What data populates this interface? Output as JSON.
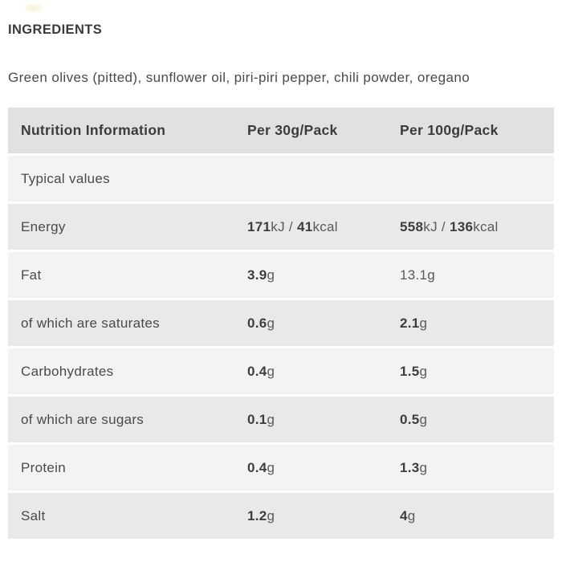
{
  "colors": {
    "header_bg": "#e1e1e1",
    "row_light_bg": "#f3f3f3",
    "row_dark_bg": "#e9e9e9",
    "heading_text": "#3b3b3b",
    "body_text": "#4a4a4a",
    "bold_text": "#3d3d3d",
    "unit_text": "#5a5a5a"
  },
  "ingredients": {
    "heading": "INGREDIENTS",
    "text": "Green olives (pitted), sunflower oil, piri-piri pepper, chili powder, oregano"
  },
  "nutrition_table": {
    "columns": [
      "Nutrition Information",
      "Per 30g/Pack",
      "Per 100g/Pack"
    ],
    "rows": [
      {
        "label": "Typical values",
        "per_30g": [],
        "per_100g": []
      },
      {
        "label": "Energy",
        "per_30g": [
          {
            "t": "171",
            "b": true
          },
          {
            "t": "kJ / ",
            "b": false
          },
          {
            "t": "41",
            "b": true
          },
          {
            "t": "kcal",
            "b": false
          }
        ],
        "per_100g": [
          {
            "t": "558",
            "b": true
          },
          {
            "t": "kJ / ",
            "b": false
          },
          {
            "t": "136",
            "b": true
          },
          {
            "t": "kcal",
            "b": false
          }
        ]
      },
      {
        "label": "Fat",
        "per_30g": [
          {
            "t": "3.9",
            "b": true
          },
          {
            "t": "g",
            "b": false
          }
        ],
        "per_100g": [
          {
            "t": "13.1g",
            "b": false
          }
        ]
      },
      {
        "label": "of which are saturates",
        "per_30g": [
          {
            "t": "0.6",
            "b": true
          },
          {
            "t": "g",
            "b": false
          }
        ],
        "per_100g": [
          {
            "t": "2.1",
            "b": true
          },
          {
            "t": "g",
            "b": false
          }
        ]
      },
      {
        "label": "Carbohydrates",
        "per_30g": [
          {
            "t": "0.4",
            "b": true
          },
          {
            "t": "g",
            "b": false
          }
        ],
        "per_100g": [
          {
            "t": "1.5",
            "b": true
          },
          {
            "t": "g",
            "b": false
          }
        ]
      },
      {
        "label": "of which are sugars",
        "per_30g": [
          {
            "t": "0.1",
            "b": true
          },
          {
            "t": "g",
            "b": false
          }
        ],
        "per_100g": [
          {
            "t": "0.5",
            "b": true
          },
          {
            "t": "g",
            "b": false
          }
        ]
      },
      {
        "label": "Protein",
        "per_30g": [
          {
            "t": "0.4",
            "b": true
          },
          {
            "t": "g",
            "b": false
          }
        ],
        "per_100g": [
          {
            "t": "1.3",
            "b": true
          },
          {
            "t": "g",
            "b": false
          }
        ]
      },
      {
        "label": "Salt",
        "per_30g": [
          {
            "t": "1.2",
            "b": true
          },
          {
            "t": "g",
            "b": false
          }
        ],
        "per_100g": [
          {
            "t": "4",
            "b": true
          },
          {
            "t": "g",
            "b": false
          }
        ]
      }
    ]
  }
}
